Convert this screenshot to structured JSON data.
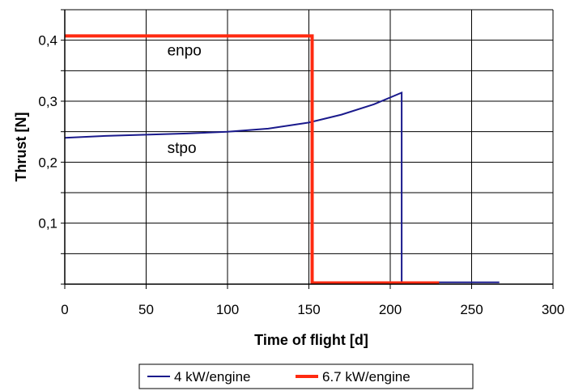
{
  "chart_data": {
    "type": "line",
    "title": "",
    "xlabel": "Time of flight [d]",
    "ylabel": "Thrust [N]",
    "xlim": [
      0,
      300
    ],
    "ylim": [
      0,
      0.45
    ],
    "x_ticks": [
      0,
      50,
      100,
      150,
      200,
      250,
      300
    ],
    "x_tick_labels": [
      "0",
      "50",
      "100",
      "150",
      "200",
      "250",
      "300"
    ],
    "y_ticks": [
      0.1,
      0.2,
      0.3,
      0.4
    ],
    "y_tick_labels": [
      "0,1",
      "0,2",
      "0,3",
      "0,4"
    ],
    "grid": true,
    "legend_position": "bottom",
    "annotations": [
      {
        "text": "enpo",
        "x": 60,
        "y": 0.375
      },
      {
        "text": "stpo",
        "x": 60,
        "y": 0.215
      }
    ],
    "series": [
      {
        "name": "4 kW/engine",
        "color": "#1a1a8c",
        "points": [
          [
            0,
            0.24
          ],
          [
            25,
            0.243
          ],
          [
            50,
            0.245
          ],
          [
            75,
            0.247
          ],
          [
            100,
            0.25
          ],
          [
            125,
            0.255
          ],
          [
            150,
            0.265
          ],
          [
            170,
            0.278
          ],
          [
            190,
            0.295
          ],
          [
            207,
            0.314
          ],
          [
            207,
            0.003
          ],
          [
            267,
            0.003
          ]
        ]
      },
      {
        "name": "6.7 kW/engine",
        "color": "#ff2a10",
        "points": [
          [
            0,
            0.407
          ],
          [
            152,
            0.407
          ],
          [
            152,
            0.002
          ],
          [
            230,
            0.002
          ]
        ]
      }
    ]
  }
}
